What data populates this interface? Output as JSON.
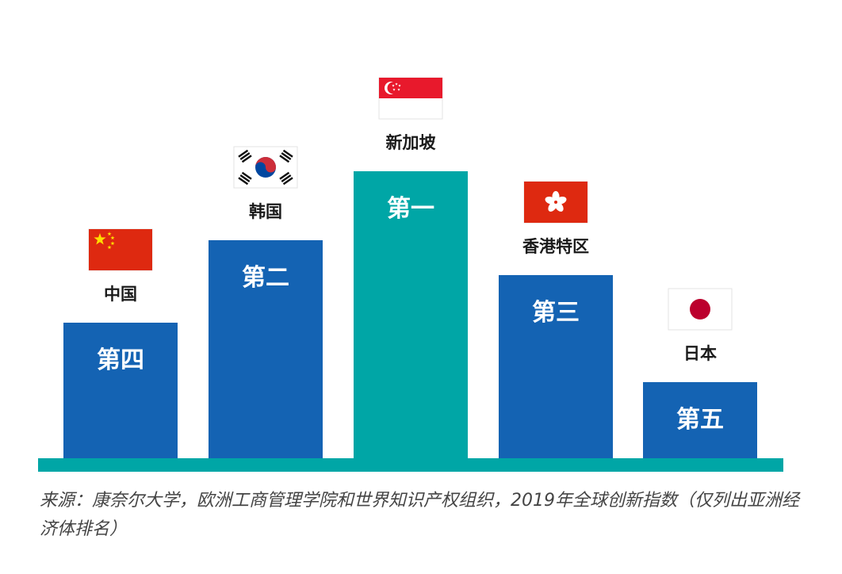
{
  "colors": {
    "bar_default": "#1463b3",
    "bar_highlight": "#00a6a6",
    "baseline": "#00a6a6",
    "label_text": "#1a1a1a"
  },
  "chart_data": {
    "type": "bar",
    "categories": [
      "中国",
      "韩国",
      "新加坡",
      "香港特区",
      "日本"
    ],
    "rank_labels": [
      "第四",
      "第二",
      "第一",
      "第三",
      "第五"
    ],
    "ranks": [
      4,
      2,
      1,
      3,
      5
    ],
    "flag_icons": [
      "china-flag-icon",
      "korea-flag-icon",
      "singapore-flag-icon",
      "hong-kong-flag-icon",
      "japan-flag-icon"
    ],
    "highlight_index": 2,
    "title": "",
    "xlabel": "",
    "ylabel": "",
    "grid": false,
    "legend": "none"
  },
  "source_note": "来源：康奈尔大学，欧洲工商管理学院和世界知识产权组织，2019年全球创新指数（仅列出亚洲经济体排名）"
}
